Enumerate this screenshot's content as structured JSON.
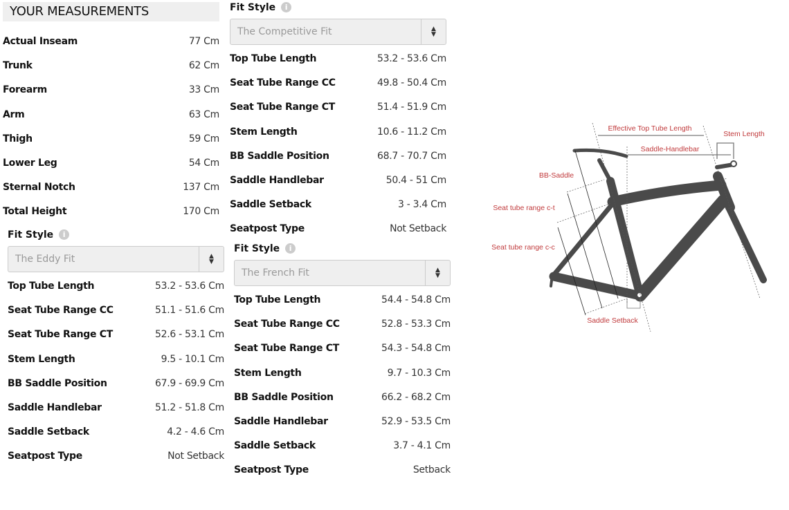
{
  "measurements": {
    "title": "YOUR MEASUREMENTS",
    "rows": [
      {
        "label": "Actual Inseam",
        "value": "77 Cm"
      },
      {
        "label": "Trunk",
        "value": "62 Cm"
      },
      {
        "label": "Forearm",
        "value": "33 Cm"
      },
      {
        "label": "Arm",
        "value": "63 Cm"
      },
      {
        "label": "Thigh",
        "value": "59 Cm"
      },
      {
        "label": "Lower Leg",
        "value": "54 Cm"
      },
      {
        "label": "Sternal Notch",
        "value": "137 Cm"
      },
      {
        "label": "Total Height",
        "value": "170 Cm"
      }
    ]
  },
  "fits": {
    "competitive": {
      "fit_style_label": "Fit Style",
      "info_icon": "info-icon",
      "selected": "The Competitive Fit",
      "rows": [
        {
          "label": "Top Tube Length",
          "value": "53.2 - 53.6 Cm"
        },
        {
          "label": "Seat Tube Range CC",
          "value": "49.8 - 50.4 Cm"
        },
        {
          "label": "Seat Tube Range CT",
          "value": "51.4 - 51.9 Cm"
        },
        {
          "label": "Stem Length",
          "value": "10.6 - 11.2 Cm"
        },
        {
          "label": "BB Saddle Position",
          "value": "68.7 - 70.7 Cm"
        },
        {
          "label": "Saddle Handlebar",
          "value": "50.4 - 51 Cm"
        },
        {
          "label": "Saddle Setback",
          "value": "3 - 3.4 Cm"
        },
        {
          "label": "Seatpost Type",
          "value": "Not Setback"
        }
      ]
    },
    "eddy": {
      "fit_style_label": "Fit Style",
      "info_icon": "info-icon",
      "selected": "The Eddy Fit",
      "rows": [
        {
          "label": "Top Tube Length",
          "value": "53.2 - 53.6 Cm"
        },
        {
          "label": "Seat Tube Range CC",
          "value": "51.1 - 51.6 Cm"
        },
        {
          "label": "Seat Tube Range CT",
          "value": "52.6 - 53.1 Cm"
        },
        {
          "label": "Stem Length",
          "value": "9.5 - 10.1 Cm"
        },
        {
          "label": "BB Saddle Position",
          "value": "67.9 - 69.9 Cm"
        },
        {
          "label": "Saddle Handlebar",
          "value": "51.2 - 51.8 Cm"
        },
        {
          "label": "Saddle Setback",
          "value": "4.2 - 4.6 Cm"
        },
        {
          "label": "Seatpost Type",
          "value": "Not Setback"
        }
      ]
    },
    "french": {
      "fit_style_label": "Fit Style",
      "info_icon": "info-icon",
      "selected": "The French Fit",
      "rows": [
        {
          "label": "Top Tube Length",
          "value": "54.4 - 54.8 Cm"
        },
        {
          "label": "Seat Tube Range CC",
          "value": "52.8 - 53.3 Cm"
        },
        {
          "label": "Seat Tube Range CT",
          "value": "54.3 - 54.8 Cm"
        },
        {
          "label": "Stem Length",
          "value": "9.7 - 10.3 Cm"
        },
        {
          "label": "BB Saddle Position",
          "value": "66.2 - 68.2 Cm"
        },
        {
          "label": "Saddle Handlebar",
          "value": "52.9 - 53.5 Cm"
        },
        {
          "label": "Saddle Setback",
          "value": "3.7 - 4.1 Cm"
        },
        {
          "label": "Seatpost Type",
          "value": "Setback"
        }
      ]
    }
  },
  "diagram": {
    "label_color": "#c0393b",
    "frame_color": "#4a4a4a",
    "labels": {
      "effective_top_tube": "Effective Top Tube Length",
      "stem_length": "Stem Length",
      "saddle_handlebar": "Saddle-Handlebar",
      "bb_saddle": "BB-Saddle",
      "seat_tube_ct": "Seat tube range c-t",
      "seat_tube_cc": "Seat tube range c-c",
      "saddle_setback": "Saddle Setback"
    }
  }
}
